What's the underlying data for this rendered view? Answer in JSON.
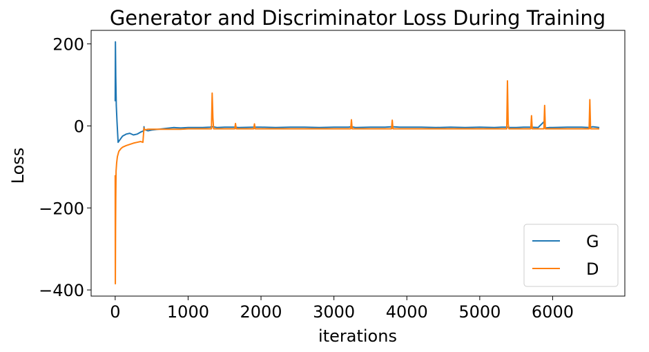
{
  "chart_data": {
    "type": "line",
    "title": "Generator and Discriminator Loss During Training",
    "xlabel": "iterations",
    "ylabel": "Loss",
    "xlim": [
      -330,
      6990
    ],
    "ylim": [
      -415,
      233
    ],
    "xticks": [
      0,
      1000,
      2000,
      3000,
      4000,
      5000,
      6000
    ],
    "xtick_labels": [
      "0",
      "1000",
      "2000",
      "3000",
      "4000",
      "5000",
      "6000"
    ],
    "yticks": [
      200,
      0,
      -200,
      -400
    ],
    "ytick_labels": [
      "200",
      "0",
      "−200",
      "−400"
    ],
    "grid": false,
    "legend_position": "lower-right",
    "series": [
      {
        "name": "G",
        "color": "#1f77b4",
        "x": [
          0,
          3,
          8,
          15,
          25,
          40,
          60,
          100,
          150,
          200,
          250,
          300,
          350,
          390,
          395,
          400,
          420,
          450,
          500,
          550,
          600,
          650,
          700,
          800,
          900,
          1000,
          1100,
          1200,
          1300,
          1340,
          1400,
          1500,
          1640,
          1700,
          1900,
          2000,
          2200,
          2400,
          2600,
          2800,
          3000,
          3200,
          3240,
          3300,
          3500,
          3700,
          3800,
          3900,
          4000,
          4200,
          4400,
          4600,
          4800,
          5000,
          5200,
          5300,
          5380,
          5400,
          5500,
          5600,
          5700,
          5800,
          5880,
          5900,
          5950,
          6000,
          6200,
          6400,
          6500,
          6550,
          6600,
          6640
        ],
        "y": [
          60,
          205,
          120,
          50,
          10,
          -40,
          -35,
          -25,
          -20,
          -18,
          -22,
          -20,
          -15,
          -12,
          -2,
          -8,
          -10,
          -12,
          -10,
          -9,
          -8,
          -7,
          -6,
          -4,
          -5,
          -4,
          -4,
          -4,
          -3,
          -2,
          -4,
          -3,
          -3,
          -4,
          -3,
          -3,
          -4,
          -3,
          -3,
          -4,
          -3,
          -3,
          -2,
          -4,
          -3,
          -3,
          -2,
          -3,
          -3,
          -3,
          -4,
          -3,
          -4,
          -3,
          -4,
          -3,
          -3,
          -4,
          -4,
          -3,
          -3,
          -4,
          10,
          -5,
          -4,
          -4,
          -3,
          -3,
          -4,
          -2,
          -3,
          -4
        ]
      },
      {
        "name": "D",
        "color": "#ff7f0e",
        "x": [
          0,
          2,
          5,
          8,
          12,
          20,
          30,
          50,
          80,
          100,
          150,
          200,
          250,
          300,
          350,
          380,
          395,
          400,
          450,
          500,
          600,
          700,
          800,
          900,
          1000,
          1200,
          1320,
          1330,
          1340,
          1350,
          1500,
          1640,
          1650,
          1660,
          1800,
          1900,
          1910,
          1920,
          2100,
          2300,
          2500,
          2700,
          2900,
          3100,
          3230,
          3240,
          3250,
          3400,
          3600,
          3790,
          3800,
          3810,
          4000,
          4200,
          4400,
          4600,
          4800,
          5000,
          5200,
          5370,
          5380,
          5390,
          5400,
          5500,
          5600,
          5700,
          5710,
          5720,
          5800,
          5880,
          5890,
          5900,
          6000,
          6200,
          6400,
          6500,
          6510,
          6520,
          6600,
          6640
        ],
        "y": [
          -120,
          -385,
          -250,
          -175,
          -110,
          -90,
          -75,
          -62,
          -55,
          -52,
          -48,
          -45,
          -42,
          -40,
          -38,
          -40,
          -5,
          -10,
          -8,
          -8,
          -8,
          -8,
          -8,
          -8,
          -7,
          -7,
          -7,
          80,
          20,
          -7,
          -7,
          -7,
          6,
          -7,
          -7,
          -7,
          5,
          -7,
          -7,
          -7,
          -7,
          -7,
          -7,
          -7,
          -7,
          15,
          -7,
          -7,
          -7,
          -7,
          14,
          -7,
          -7,
          -7,
          -7,
          -7,
          -7,
          -7,
          -7,
          -7,
          110,
          5,
          -7,
          -7,
          -7,
          -7,
          25,
          -7,
          -7,
          -7,
          50,
          -7,
          -7,
          -7,
          -7,
          -7,
          64,
          -7,
          -7,
          -7
        ]
      }
    ]
  }
}
